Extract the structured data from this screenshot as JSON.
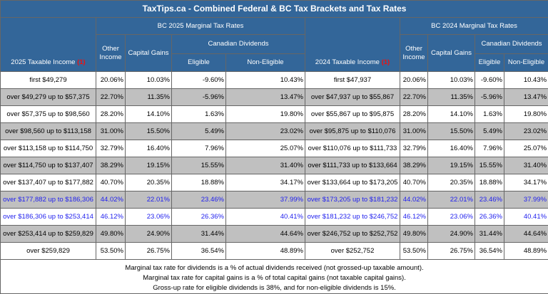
{
  "title": "TaxTips.ca - Combined Federal & BC Tax Brackets and Tax Rates",
  "left": {
    "group": "BC 2025 Marginal Tax Rates",
    "income_header": "2025 Taxable Income",
    "note_ref": "(1)"
  },
  "right": {
    "group": "BC 2024 Marginal Tax Rates",
    "income_header": "2024 Taxable Income",
    "note_ref": "(1)"
  },
  "cols": {
    "other": "Other Income",
    "cap": "Capital Gains",
    "div": "Canadian Dividends",
    "elig": "Eligible",
    "nonelig": "Non-Eligible"
  },
  "rows": [
    {
      "i25": "first $49,279",
      "a": [
        "20.06%",
        "10.03%",
        "-9.60%",
        "10.43%"
      ],
      "i24": "first $47,937",
      "b": [
        "20.06%",
        "10.03%",
        "-9.60%",
        "10.43%"
      ]
    },
    {
      "i25": "over $49,279 up to $57,375",
      "a": [
        "22.70%",
        "11.35%",
        "-5.96%",
        "13.47%"
      ],
      "i24": "over $47,937 up to $55,867",
      "b": [
        "22.70%",
        "11.35%",
        "-5.96%",
        "13.47%"
      ]
    },
    {
      "i25": "over $57,375 up to $98,560",
      "a": [
        "28.20%",
        "14.10%",
        "1.63%",
        "19.80%"
      ],
      "i24": "over $55,867 up to $95,875",
      "b": [
        "28.20%",
        "14.10%",
        "1.63%",
        "19.80%"
      ]
    },
    {
      "i25": "over $98,560 up to $113,158",
      "a": [
        "31.00%",
        "15.50%",
        "5.49%",
        "23.02%"
      ],
      "i24": "over $95,875 up to $110,076",
      "b": [
        "31.00%",
        "15.50%",
        "5.49%",
        "23.02%"
      ]
    },
    {
      "i25": "over $113,158 up to $114,750",
      "a": [
        "32.79%",
        "16.40%",
        "7.96%",
        "25.07%"
      ],
      "i24": "over $110,076 up to $111,733",
      "b": [
        "32.79%",
        "16.40%",
        "7.96%",
        "25.07%"
      ]
    },
    {
      "i25": "over $114,750 up to $137,407",
      "a": [
        "38.29%",
        "19.15%",
        "15.55%",
        "31.40%"
      ],
      "i24": "over $111,733 up to $133,664",
      "b": [
        "38.29%",
        "19.15%",
        "15.55%",
        "31.40%"
      ]
    },
    {
      "i25": "over $137,407 up to $177,882",
      "a": [
        "40.70%",
        "20.35%",
        "18.88%",
        "34.17%"
      ],
      "i24": "over $133,664 up to $173,205",
      "b": [
        "40.70%",
        "20.35%",
        "18.88%",
        "34.17%"
      ]
    },
    {
      "i25": "over $177,882 up to $186,306",
      "a": [
        "44.02%",
        "22.01%",
        "23.46%",
        "37.99%"
      ],
      "i24": "over $173,205 up to $181,232",
      "b": [
        "44.02%",
        "22.01%",
        "23.46%",
        "37.99%"
      ]
    },
    {
      "i25": "over $186,306 up to $253,414",
      "a": [
        "46.12%",
        "23.06%",
        "26.36%",
        "40.41%"
      ],
      "i24": "over $181,232 up to $246,752",
      "b": [
        "46.12%",
        "23.06%",
        "26.36%",
        "40.41%"
      ]
    },
    {
      "i25": "over $253,414 up to $259,829",
      "a": [
        "49.80%",
        "24.90%",
        "31.44%",
        "44.64%"
      ],
      "i24": "over $246,752 up to $252,752",
      "b": [
        "49.80%",
        "24.90%",
        "31.44%",
        "44.64%"
      ]
    },
    {
      "i25": "over $259,829",
      "a": [
        "53.50%",
        "26.75%",
        "36.54%",
        "48.89%"
      ],
      "i24": "over $252,752",
      "b": [
        "53.50%",
        "26.75%",
        "36.54%",
        "48.89%"
      ]
    }
  ],
  "highlight_rows": [
    7,
    8
  ],
  "notes": [
    "Marginal tax rate for dividends is a % of actual dividends received (not grossed-up taxable amount).",
    "Marginal tax rate for capital gains is a % of total capital gains (not taxable capital gains).",
    "Gross-up rate for eligible dividends is 38%, and for non-eligible dividends is 15%."
  ],
  "colors": {
    "header": "#336699",
    "gray_row": "#c0c0c0",
    "highlight_text": "#2222ee",
    "note_ref": "#ee1111"
  }
}
